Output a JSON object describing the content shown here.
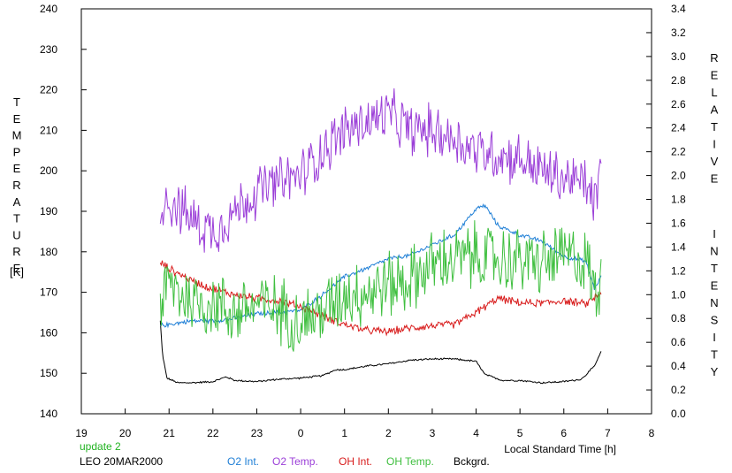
{
  "chart_data": {
    "type": "line",
    "xlabel": "Local Standard Time [h]",
    "x_ticks": [
      "19",
      "20",
      "21",
      "22",
      "23",
      "0",
      "1",
      "2",
      "3",
      "4",
      "5",
      "6",
      "7",
      "8"
    ],
    "xlim": [
      19,
      32
    ],
    "ylabel_left": "TEMPERATURE",
    "ylabel_left_unit": "[K]",
    "ylim_left": [
      140,
      240
    ],
    "yticks_left": [
      "140",
      "150",
      "160",
      "170",
      "180",
      "190",
      "200",
      "210",
      "220",
      "230",
      "240"
    ],
    "ylabel_right": "RELATIVE INTENSITY",
    "ylim_right": [
      0.0,
      3.4
    ],
    "yticks_right": [
      "0.0",
      "0.2",
      "0.4",
      "0.6",
      "0.8",
      "1.0",
      "1.2",
      "1.4",
      "1.6",
      "1.8",
      "2.0",
      "2.2",
      "2.4",
      "2.6",
      "2.8",
      "3.0",
      "3.2",
      "3.4"
    ],
    "grid": false,
    "update_text": "update 2",
    "station_text": "LEO 20MAR2000",
    "series": [
      {
        "name": "O2 Int.",
        "axis": "right",
        "color": "#1f7fd6",
        "noise": 0.02,
        "x": [
          20.8,
          21.0,
          21.5,
          22.0,
          22.5,
          23.0,
          23.5,
          24.0,
          24.5,
          25.0,
          25.5,
          26.0,
          26.5,
          27.0,
          27.5,
          28.0,
          28.2,
          28.5,
          29.0,
          29.5,
          30.0,
          30.5,
          30.7,
          30.85
        ],
        "y": [
          0.74,
          0.75,
          0.78,
          0.78,
          0.8,
          0.84,
          0.85,
          0.87,
          1.0,
          1.15,
          1.22,
          1.3,
          1.33,
          1.42,
          1.5,
          1.72,
          1.75,
          1.58,
          1.5,
          1.45,
          1.32,
          1.28,
          1.05,
          1.15
        ]
      },
      {
        "name": "O2 Temp.",
        "axis": "left",
        "color": "#9b3fd8",
        "noise": 7,
        "x": [
          20.8,
          21.0,
          21.5,
          22.0,
          22.5,
          23.0,
          23.5,
          24.0,
          24.5,
          25.0,
          25.5,
          26.0,
          26.5,
          27.0,
          27.5,
          28.0,
          28.5,
          29.0,
          29.5,
          30.0,
          30.5,
          30.7,
          30.85
        ],
        "y": [
          192,
          193,
          188,
          185,
          190,
          195,
          197,
          199,
          205,
          210,
          212,
          214,
          210,
          210,
          208,
          205,
          204,
          203,
          200,
          198,
          197,
          192,
          200
        ]
      },
      {
        "name": "OH Int.",
        "axis": "right",
        "color": "#d81c1c",
        "noise": 0.035,
        "x": [
          20.8,
          21.0,
          21.5,
          22.0,
          22.5,
          23.0,
          23.5,
          24.0,
          24.5,
          25.0,
          25.5,
          26.0,
          26.5,
          27.0,
          27.5,
          28.0,
          28.5,
          29.0,
          29.5,
          30.0,
          30.5,
          30.85
        ],
        "y": [
          1.27,
          1.22,
          1.12,
          1.05,
          1.0,
          0.97,
          0.95,
          0.9,
          0.82,
          0.75,
          0.7,
          0.69,
          0.72,
          0.74,
          0.75,
          0.85,
          0.97,
          0.93,
          0.93,
          0.95,
          0.92,
          1.02
        ]
      },
      {
        "name": "OH Temp.",
        "axis": "left",
        "color": "#3fbf3f",
        "noise": 9,
        "x": [
          20.8,
          21.0,
          21.5,
          22.0,
          22.5,
          23.0,
          23.5,
          24.0,
          24.5,
          25.0,
          25.5,
          26.0,
          26.5,
          27.0,
          27.5,
          28.0,
          28.5,
          29.0,
          29.5,
          30.0,
          30.5,
          30.7,
          30.85
        ],
        "y": [
          167,
          172,
          168,
          167,
          165,
          167,
          166,
          163,
          165,
          170,
          170,
          172,
          173,
          177,
          178,
          179,
          178,
          178,
          177,
          179,
          178,
          170,
          172
        ]
      },
      {
        "name": "Bckgrd.",
        "axis": "right",
        "color": "#000000",
        "noise": 0.008,
        "x": [
          20.8,
          20.85,
          20.95,
          21.2,
          21.5,
          22.0,
          22.3,
          22.5,
          23.0,
          23.5,
          24.0,
          24.5,
          24.8,
          25.0,
          25.5,
          26.0,
          26.5,
          27.0,
          27.5,
          28.0,
          28.2,
          28.6,
          29.0,
          29.5,
          30.0,
          30.4,
          30.7,
          30.85
        ],
        "y": [
          0.78,
          0.5,
          0.3,
          0.26,
          0.26,
          0.27,
          0.31,
          0.28,
          0.27,
          0.29,
          0.3,
          0.32,
          0.37,
          0.37,
          0.4,
          0.42,
          0.45,
          0.46,
          0.46,
          0.44,
          0.33,
          0.28,
          0.28,
          0.26,
          0.27,
          0.29,
          0.4,
          0.52
        ]
      }
    ]
  }
}
